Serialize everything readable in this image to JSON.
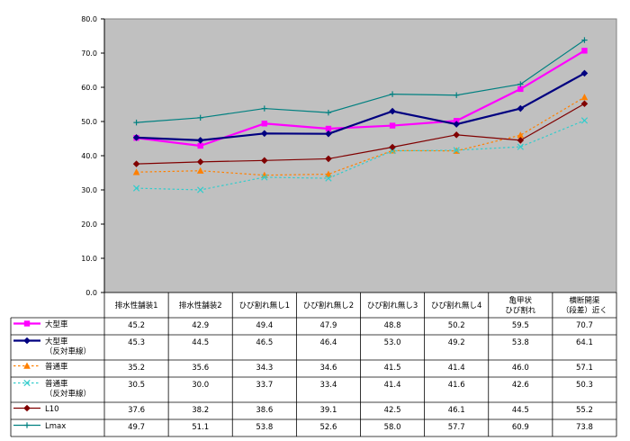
{
  "chart_data": {
    "type": "line",
    "title": "",
    "xlabel": "",
    "ylabel": "",
    "ylim": [
      0,
      80
    ],
    "ytick_step": 10,
    "yticks": [
      "0.0",
      "10.0",
      "20.0",
      "30.0",
      "40.0",
      "50.0",
      "60.0",
      "70.0",
      "80.0"
    ],
    "grid": false,
    "plot_background": "#c0c0c0",
    "legend": "data table below plot",
    "categories": [
      [
        "排水性舗装1"
      ],
      [
        "排水性舗装2"
      ],
      [
        "ひび割れ無し1"
      ],
      [
        "ひび割れ無し2"
      ],
      [
        "ひび割れ無し3"
      ],
      [
        "ひび割れ無し4"
      ],
      [
        "亀甲状",
        "ひび割れ"
      ],
      [
        "横断開渠",
        "（段差）近く"
      ]
    ],
    "series": [
      {
        "name": [
          "大型車"
        ],
        "color": "#ff00ff",
        "marker": "square",
        "dash": "solid",
        "width": 2.2,
        "values": [
          45.2,
          42.9,
          49.4,
          47.9,
          48.8,
          50.2,
          59.5,
          70.7
        ]
      },
      {
        "name": [
          "大型車",
          "（反対車線）"
        ],
        "color": "#000080",
        "marker": "diamond",
        "dash": "solid",
        "width": 2.2,
        "values": [
          45.3,
          44.5,
          46.5,
          46.4,
          53.0,
          49.2,
          53.8,
          64.1
        ]
      },
      {
        "name": [
          "普通車"
        ],
        "color": "#ff8000",
        "marker": "triangle",
        "dash": "dotted",
        "width": 1.2,
        "values": [
          35.2,
          35.6,
          34.3,
          34.6,
          41.5,
          41.4,
          46.0,
          57.1
        ]
      },
      {
        "name": [
          "普通車",
          "（反対車線）"
        ],
        "color": "#33cccc",
        "marker": "x",
        "dash": "dotted",
        "width": 1.2,
        "values": [
          30.5,
          30.0,
          33.7,
          33.4,
          41.4,
          41.6,
          42.6,
          50.3
        ]
      },
      {
        "name": [
          "L10"
        ],
        "color": "#800000",
        "marker": "diamond",
        "dash": "solid",
        "width": 1.2,
        "values": [
          37.6,
          38.2,
          38.6,
          39.1,
          42.5,
          46.1,
          44.5,
          55.2
        ]
      },
      {
        "name": [
          "Lmax"
        ],
        "color": "#008080",
        "marker": "plus",
        "dash": "solid",
        "width": 1.2,
        "values": [
          49.7,
          51.1,
          53.8,
          52.6,
          58.0,
          57.7,
          60.9,
          73.8
        ]
      }
    ]
  }
}
